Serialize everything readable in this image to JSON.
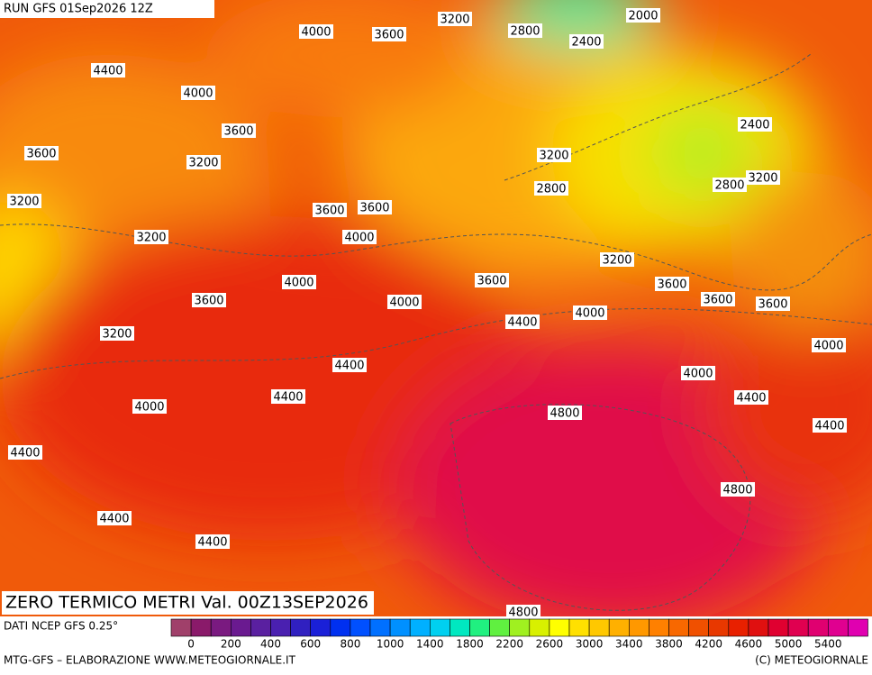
{
  "header": {
    "run": "RUN GFS 01Sep2026 12Z"
  },
  "map": {
    "title": "ZERO TERMICO METRI Val. 00Z13SEP2026",
    "contour_labels": [
      "3200",
      "2800",
      "2000",
      "4000",
      "3600",
      "2400",
      "4400",
      "4000",
      "3600",
      "2400",
      "3600",
      "3200",
      "3200",
      "3200",
      "2800",
      "2800",
      "3200",
      "3600",
      "3600",
      "3200",
      "4000",
      "3200",
      "3600",
      "4000",
      "3600",
      "3600",
      "3600",
      "3600",
      "4000",
      "4400",
      "4000",
      "3200",
      "4000",
      "4400",
      "4000",
      "4400",
      "4400",
      "4000",
      "4800",
      "4400",
      "4400",
      "4800",
      "4400",
      "4400",
      "4800"
    ]
  },
  "colorbar": {
    "colors": [
      "#a0406a",
      "#8a1a6a",
      "#7a1a80",
      "#6a1a90",
      "#5a20a0",
      "#4a20b0",
      "#3020c0",
      "#1a20d8",
      "#0030f0",
      "#0050ff",
      "#0070ff",
      "#0090ff",
      "#00b0ff",
      "#00d0f0",
      "#00e8c0",
      "#20f080",
      "#60f040",
      "#a0f020",
      "#d8f000",
      "#ffff00",
      "#ffe000",
      "#ffc800",
      "#ffb000",
      "#ff9800",
      "#ff8000",
      "#f86800",
      "#f05000",
      "#e83800",
      "#e82000",
      "#e01010",
      "#e00030",
      "#e00050",
      "#e00070",
      "#e00090",
      "#e000b0"
    ],
    "labels": [
      "0",
      "200",
      "400",
      "600",
      "800",
      "1000",
      "1400",
      "1800",
      "2200",
      "2600",
      "3000",
      "3400",
      "3800",
      "4200",
      "4600",
      "5000",
      "5400"
    ]
  },
  "footer": {
    "source": "DATI NCEP GFS 0.25°",
    "credit": "MTG-GFS – ELABORAZIONE WWW.METEOGIORNALE.IT",
    "copyright": "(C) METEOGIORNALE"
  }
}
